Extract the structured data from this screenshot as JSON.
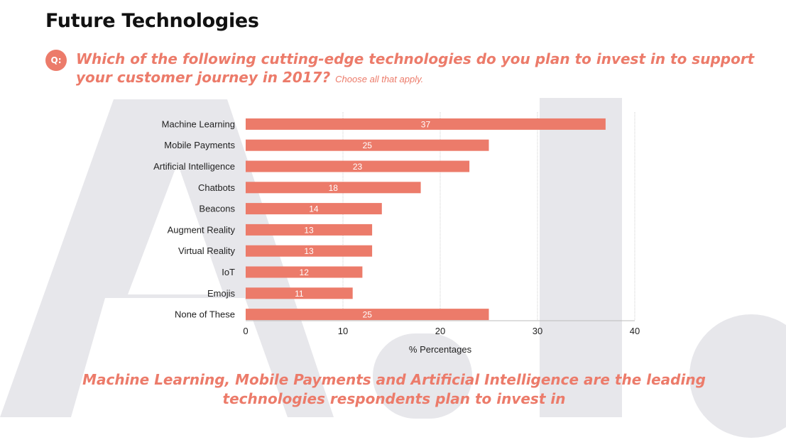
{
  "header": {
    "title": "Future Technologies",
    "q_badge": "Q:",
    "question": "Which of the following cutting-edge technologies do you plan to invest in to support your customer journey in 2017?",
    "question_note": "Choose all that apply."
  },
  "conclusion": "Machine Learning, Mobile Payments and Artificial Intelligence are the leading technologies respondents plan to invest in",
  "colors": {
    "accent": "#ec7b6a",
    "bar": "#ec7b6a",
    "background_letters": "#e7e7eb",
    "grid": "#cfcfcf"
  },
  "chart_data": {
    "type": "bar",
    "orientation": "horizontal",
    "categories": [
      "Machine Learning",
      "Mobile Payments",
      "Artificial Intelligence",
      "Chatbots",
      "Beacons",
      "Augment Reality",
      "Virtual Reality",
      "IoT",
      "Emojis",
      "None of These"
    ],
    "values": [
      37,
      25,
      23,
      18,
      14,
      13,
      13,
      12,
      11,
      25
    ],
    "xlabel": "% Percentages",
    "ylabel": "",
    "xlim": [
      0,
      40
    ],
    "xticks": [
      0,
      10,
      20,
      30,
      40
    ],
    "grid": true,
    "data_labels": true
  }
}
